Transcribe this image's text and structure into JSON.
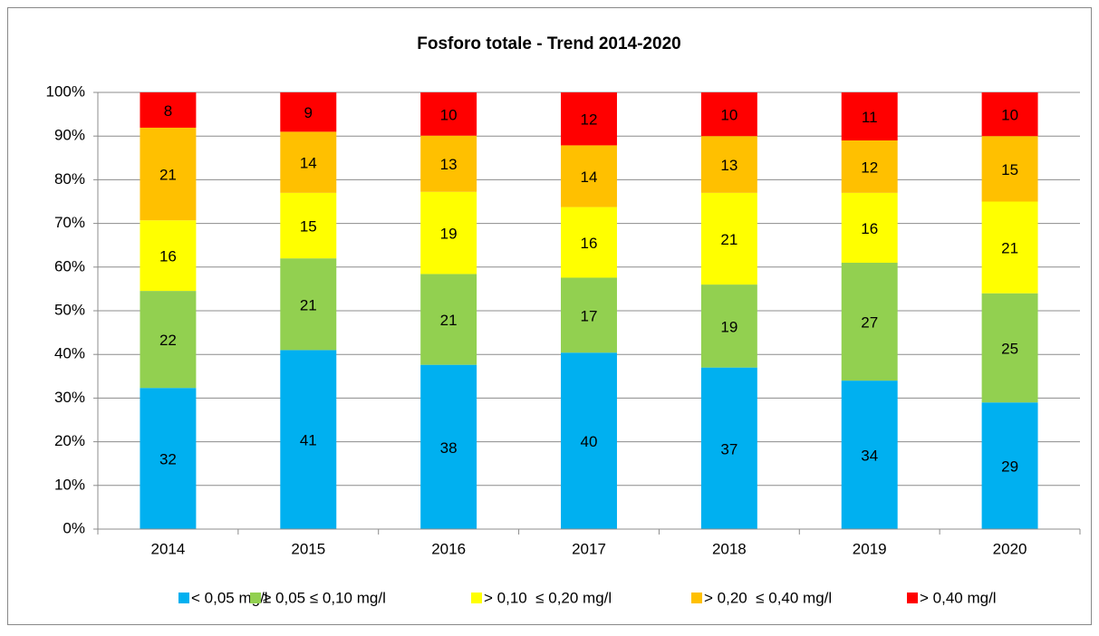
{
  "chart_data": {
    "type": "bar",
    "stacking": "percent",
    "title": "Fosforo totale - Trend 2014-2020",
    "categories": [
      "2014",
      "2015",
      "2016",
      "2017",
      "2018",
      "2019",
      "2020"
    ],
    "series": [
      {
        "name": "< 0,05 mg/l",
        "color": "#00b0f0",
        "values": [
          32,
          41,
          38,
          40,
          37,
          34,
          29
        ]
      },
      {
        "name": "≥ 0,05 ≤ 0,10 mg/l",
        "color": "#92d050",
        "values": [
          22,
          21,
          21,
          17,
          19,
          27,
          25
        ]
      },
      {
        "name": "> 0,10  ≤ 0,20 mg/l",
        "color": "#ffff00",
        "values": [
          16,
          15,
          19,
          16,
          21,
          16,
          21
        ]
      },
      {
        "name": "> 0,20  ≤ 0,40 mg/l",
        "color": "#ffc000",
        "values": [
          21,
          14,
          13,
          14,
          13,
          12,
          15
        ]
      },
      {
        "name": "> 0,40 mg/l",
        "color": "#ff0000",
        "values": [
          8,
          9,
          10,
          12,
          10,
          11,
          10
        ]
      }
    ],
    "ylim": [
      0,
      100
    ],
    "yticks": [
      {
        "value": 0,
        "label": "0%"
      },
      {
        "value": 10,
        "label": "10%"
      },
      {
        "value": 20,
        "label": "20%"
      },
      {
        "value": 30,
        "label": "30%"
      },
      {
        "value": 40,
        "label": "40%"
      },
      {
        "value": 50,
        "label": "50%"
      },
      {
        "value": 60,
        "label": "60%"
      },
      {
        "value": 70,
        "label": "70%"
      },
      {
        "value": 80,
        "label": "80%"
      },
      {
        "value": 90,
        "label": "90%"
      },
      {
        "value": 100,
        "label": "100%"
      }
    ],
    "grid": true,
    "legend": "bottom"
  }
}
